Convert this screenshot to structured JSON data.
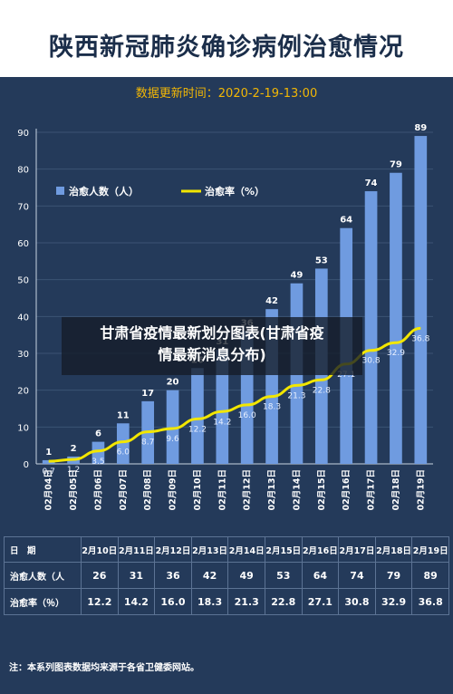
{
  "header": {
    "title": "陕西新冠肺炎确诊病例治愈情况",
    "subtitle": "数据更新时间：2020-2-19-13:00"
  },
  "overlay": {
    "line1": "甘肃省疫情最新划分图表(甘肃省疫",
    "line2": "情最新消息分布)"
  },
  "chart_data": {
    "type": "bar",
    "categories": [
      "02月04日",
      "02月05日",
      "02月06日",
      "02月07日",
      "02月08日",
      "02月09日",
      "02月10日",
      "02月11日",
      "02月12日",
      "02月13日",
      "02月14日",
      "02月15日",
      "02月16日",
      "02月17日",
      "02月18日",
      "02月19日"
    ],
    "series": [
      {
        "name": "治愈人数（人）",
        "type": "bar",
        "values": [
          1,
          2,
          6,
          11,
          17,
          20,
          26,
          31,
          36,
          42,
          49,
          53,
          64,
          74,
          79,
          89
        ]
      },
      {
        "name": "治愈率（%）",
        "type": "line",
        "values": [
          0.7,
          1.2,
          3.5,
          6.0,
          8.7,
          9.6,
          12.2,
          14.2,
          16.0,
          18.3,
          21.3,
          22.8,
          27.1,
          30.8,
          32.9,
          36.8
        ]
      }
    ],
    "yticks": [
      0,
      10,
      20,
      30,
      40,
      50,
      60,
      70,
      80,
      90
    ],
    "ylim": [
      0,
      90
    ],
    "legend": "top-left",
    "grid": true,
    "colors": {
      "bar": "#6f9be0",
      "line": "#f2e600",
      "axis": "#c9d4e3",
      "grid": "#3b5374"
    }
  },
  "table": {
    "headers": [
      "日　期",
      "2月10日",
      "2月11日",
      "2月12日",
      "2月13日",
      "2月14日",
      "2月15日",
      "2月16日",
      "2月17日",
      "2月18日",
      "2月19日"
    ],
    "rows": [
      [
        "治愈人数（人",
        "26",
        "31",
        "36",
        "42",
        "49",
        "53",
        "64",
        "74",
        "79",
        "89"
      ],
      [
        "治愈率（％）",
        "12.2",
        "14.2",
        "16.0",
        "18.3",
        "21.3",
        "22.8",
        "27.1",
        "30.8",
        "32.9",
        "36.8"
      ]
    ]
  },
  "note": "注：本系列图表数据均来源于各省卫健委网站。"
}
